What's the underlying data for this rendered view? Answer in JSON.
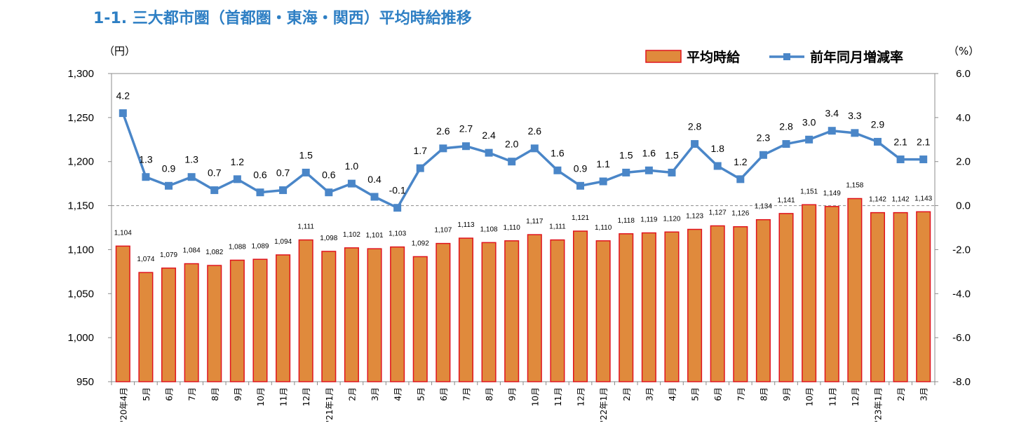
{
  "title": "1-1.  三大都市圏（首都圏・東海・関西）平均時給推移",
  "chart_data": {
    "type": "bar",
    "left_axis_unit": "（円）",
    "right_axis_unit": "（%）",
    "y_left_lim": [
      950,
      1300
    ],
    "y_left_ticks": [
      "950",
      "1,000",
      "1,050",
      "1,100",
      "1,150",
      "1,200",
      "1,250",
      "1,300"
    ],
    "y_right_lim": [
      -8.0,
      6.0
    ],
    "y_right_ticks": [
      "-8.0",
      "-6.0",
      "-4.0",
      "-2.0",
      "0.0",
      "2.0",
      "4.0",
      "6.0"
    ],
    "categories": [
      "'20年4月",
      "5月",
      "6月",
      "7月",
      "8月",
      "9月",
      "10月",
      "11月",
      "12月",
      "'21年1月",
      "2月",
      "3月",
      "4月",
      "5月",
      "6月",
      "7月",
      "8月",
      "9月",
      "10月",
      "11月",
      "12月",
      "'22年1月",
      "2月",
      "3月",
      "4月",
      "5月",
      "6月",
      "7月",
      "8月",
      "9月",
      "10月",
      "11月",
      "12月",
      "'23年1月",
      "2月",
      "3月"
    ],
    "series": [
      {
        "name": "平均時給",
        "type": "bar",
        "axis": "left",
        "color": "#e08a3c",
        "border_color": "#e0141e",
        "values": [
          1104,
          1074,
          1079,
          1084,
          1082,
          1088,
          1089,
          1094,
          1111,
          1098,
          1102,
          1101,
          1103,
          1092,
          1107,
          1113,
          1108,
          1110,
          1117,
          1111,
          1121,
          1110,
          1118,
          1119,
          1120,
          1123,
          1127,
          1126,
          1134,
          1141,
          1151,
          1149,
          1158,
          1142,
          1142,
          1143
        ],
        "labels": [
          "1,104",
          "1,074",
          "1,079",
          "1,084",
          "1,082",
          "1,088",
          "1,089",
          "1,094",
          "1,111",
          "1,098",
          "1,102",
          "1,101",
          "1,103",
          "1,092",
          "1,107",
          "1,113",
          "1,108",
          "1,110",
          "1,117",
          "1,111",
          "1,121",
          "1,110",
          "1,118",
          "1,119",
          "1,120",
          "1,123",
          "1,127",
          "1,126",
          "1,134",
          "1,141",
          "1,151",
          "1,149",
          "1,158",
          "1,142",
          "1,142",
          "1,143"
        ]
      },
      {
        "name": "前年同月増減率",
        "type": "line",
        "axis": "right",
        "color": "#4a86c8",
        "values": [
          4.2,
          1.3,
          0.9,
          1.3,
          0.7,
          1.2,
          0.6,
          0.7,
          1.5,
          0.6,
          1.0,
          0.4,
          -0.1,
          1.7,
          2.6,
          2.7,
          2.4,
          2.0,
          2.6,
          1.6,
          0.9,
          1.1,
          1.5,
          1.6,
          1.5,
          2.8,
          1.8,
          1.2,
          2.3,
          2.8,
          3.0,
          3.4,
          3.3,
          2.9,
          2.1,
          2.1
        ],
        "labels": [
          "4.2",
          "1.3",
          "0.9",
          "1.3",
          "0.7",
          "1.2",
          "0.6",
          "0.7",
          "1.5",
          "0.6",
          "1.0",
          "0.4",
          "-0.1",
          "1.7",
          "2.6",
          "2.7",
          "2.4",
          "2.0",
          "2.6",
          "1.6",
          "0.9",
          "1.1",
          "1.5",
          "1.6",
          "1.5",
          "2.8",
          "1.8",
          "1.2",
          "2.3",
          "2.8",
          "3.0",
          "3.4",
          "3.3",
          "2.9",
          "2.1",
          "2.1"
        ]
      }
    ],
    "reference_line": {
      "axis": "right",
      "value": 0.0,
      "style": "dashed"
    },
    "legend": {
      "position": "top-right",
      "entries": [
        "平均時給",
        "前年同月増減率"
      ]
    },
    "grid": false
  }
}
